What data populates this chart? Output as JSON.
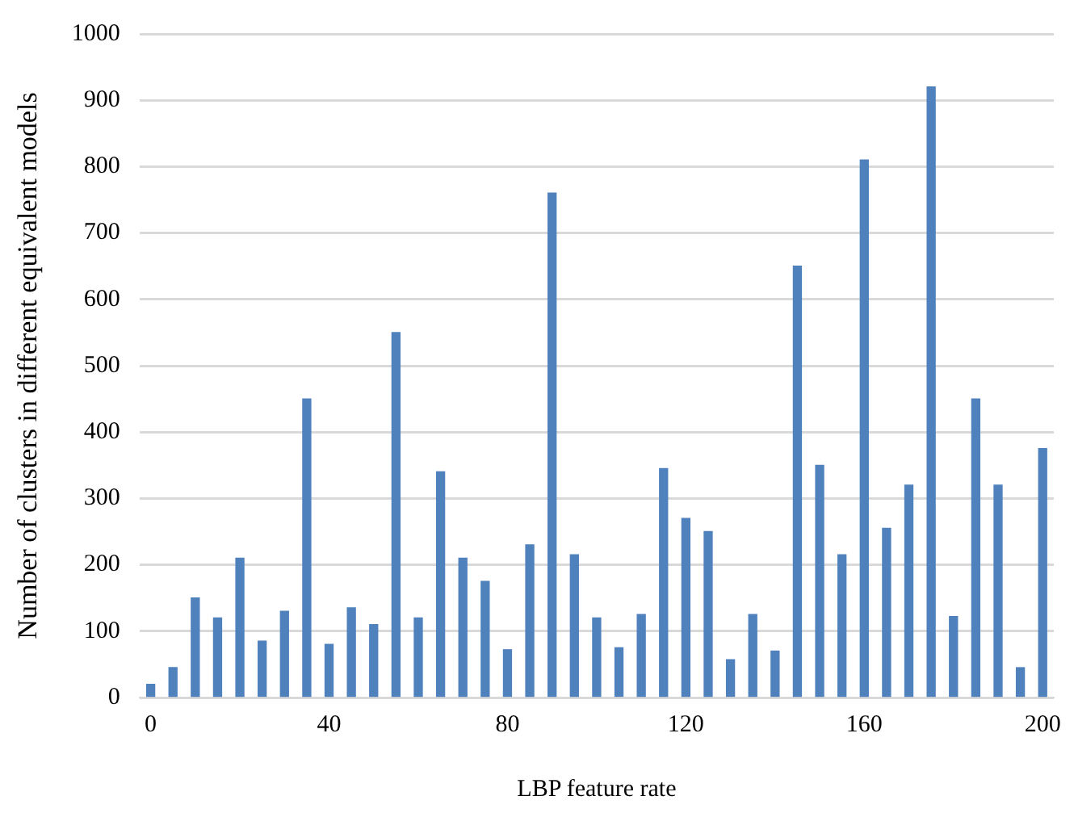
{
  "chart_data": {
    "type": "bar",
    "xlabel": "LBP feature rate",
    "ylabel": "Number of clusters in different equivalent models",
    "categories": [
      "0",
      null,
      null,
      null,
      null,
      null,
      null,
      null,
      "40",
      null,
      null,
      null,
      null,
      null,
      null,
      null,
      "80",
      null,
      null,
      null,
      null,
      null,
      null,
      null,
      "120",
      null,
      null,
      null,
      null,
      null,
      null,
      null,
      "160",
      null,
      null,
      null,
      null,
      null,
      null,
      null,
      "200"
    ],
    "values": [
      20,
      45,
      150,
      120,
      210,
      85,
      130,
      450,
      80,
      135,
      110,
      550,
      120,
      340,
      210,
      175,
      72,
      230,
      760,
      215,
      120,
      75,
      125,
      345,
      270,
      250,
      57,
      125,
      70,
      650,
      350,
      215,
      810,
      255,
      320,
      920,
      122,
      450,
      320,
      45,
      375
    ],
    "color": "#4f81bd",
    "ylim": [
      0,
      1000
    ],
    "yticks": [
      0,
      100,
      200,
      300,
      400,
      500,
      600,
      700,
      800,
      900,
      1000
    ],
    "grid": "y"
  }
}
